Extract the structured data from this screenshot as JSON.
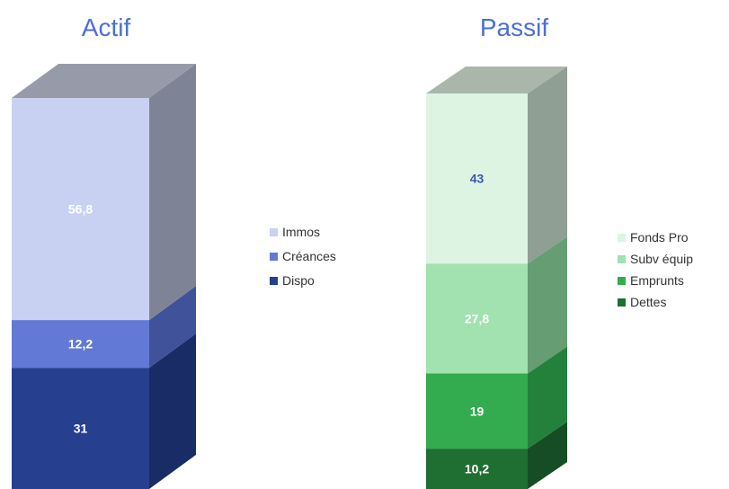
{
  "chart_data": [
    {
      "type": "bar",
      "stacked": true,
      "style": "3d-column",
      "title": "Actif",
      "title_color": "#4a6fd6",
      "series": [
        {
          "name": "Dispo",
          "value": 31,
          "label": "31",
          "color": "#263f8f",
          "side_color": "#1a2c66",
          "label_color": "#ffffff"
        },
        {
          "name": "Créances",
          "value": 12.2,
          "label": "12,2",
          "color": "#6279d6",
          "side_color": "#3f529a",
          "label_color": "#ffffff"
        },
        {
          "name": "Immos",
          "value": 56.8,
          "label": "56,8",
          "color": "#c9d1f3",
          "side_color": "#7e8496",
          "label_color": "#ffffff"
        }
      ],
      "top_color": "#979ba9",
      "legend": {
        "placement": "right",
        "order": [
          "Immos",
          "Créances",
          "Dispo"
        ]
      }
    },
    {
      "type": "bar",
      "stacked": true,
      "style": "3d-column",
      "title": "Passif",
      "title_color": "#4a6fd6",
      "series": [
        {
          "name": "Dettes",
          "value": 10.2,
          "label": "10,2",
          "color": "#1f6e32",
          "side_color": "#174d24",
          "label_color": "#ffffff"
        },
        {
          "name": "Emprunts",
          "value": 19,
          "label": "19",
          "color": "#33ab4f",
          "side_color": "#24813c",
          "label_color": "#ffffff"
        },
        {
          "name": "Subv équip",
          "value": 27.8,
          "label": "27,8",
          "color": "#a1e2b0",
          "side_color": "#679d73",
          "label_color": "#ffffff"
        },
        {
          "name": "Fonds Pro",
          "value": 43,
          "label": "43",
          "color": "#ddf4e3",
          "side_color": "#8f9f93",
          "label_color": "#3a56b0"
        }
      ],
      "top_color": "#a9b6a9",
      "legend": {
        "placement": "right",
        "order": [
          "Fonds Pro",
          "Subv équip",
          "Emprunts",
          "Dettes"
        ]
      }
    }
  ]
}
